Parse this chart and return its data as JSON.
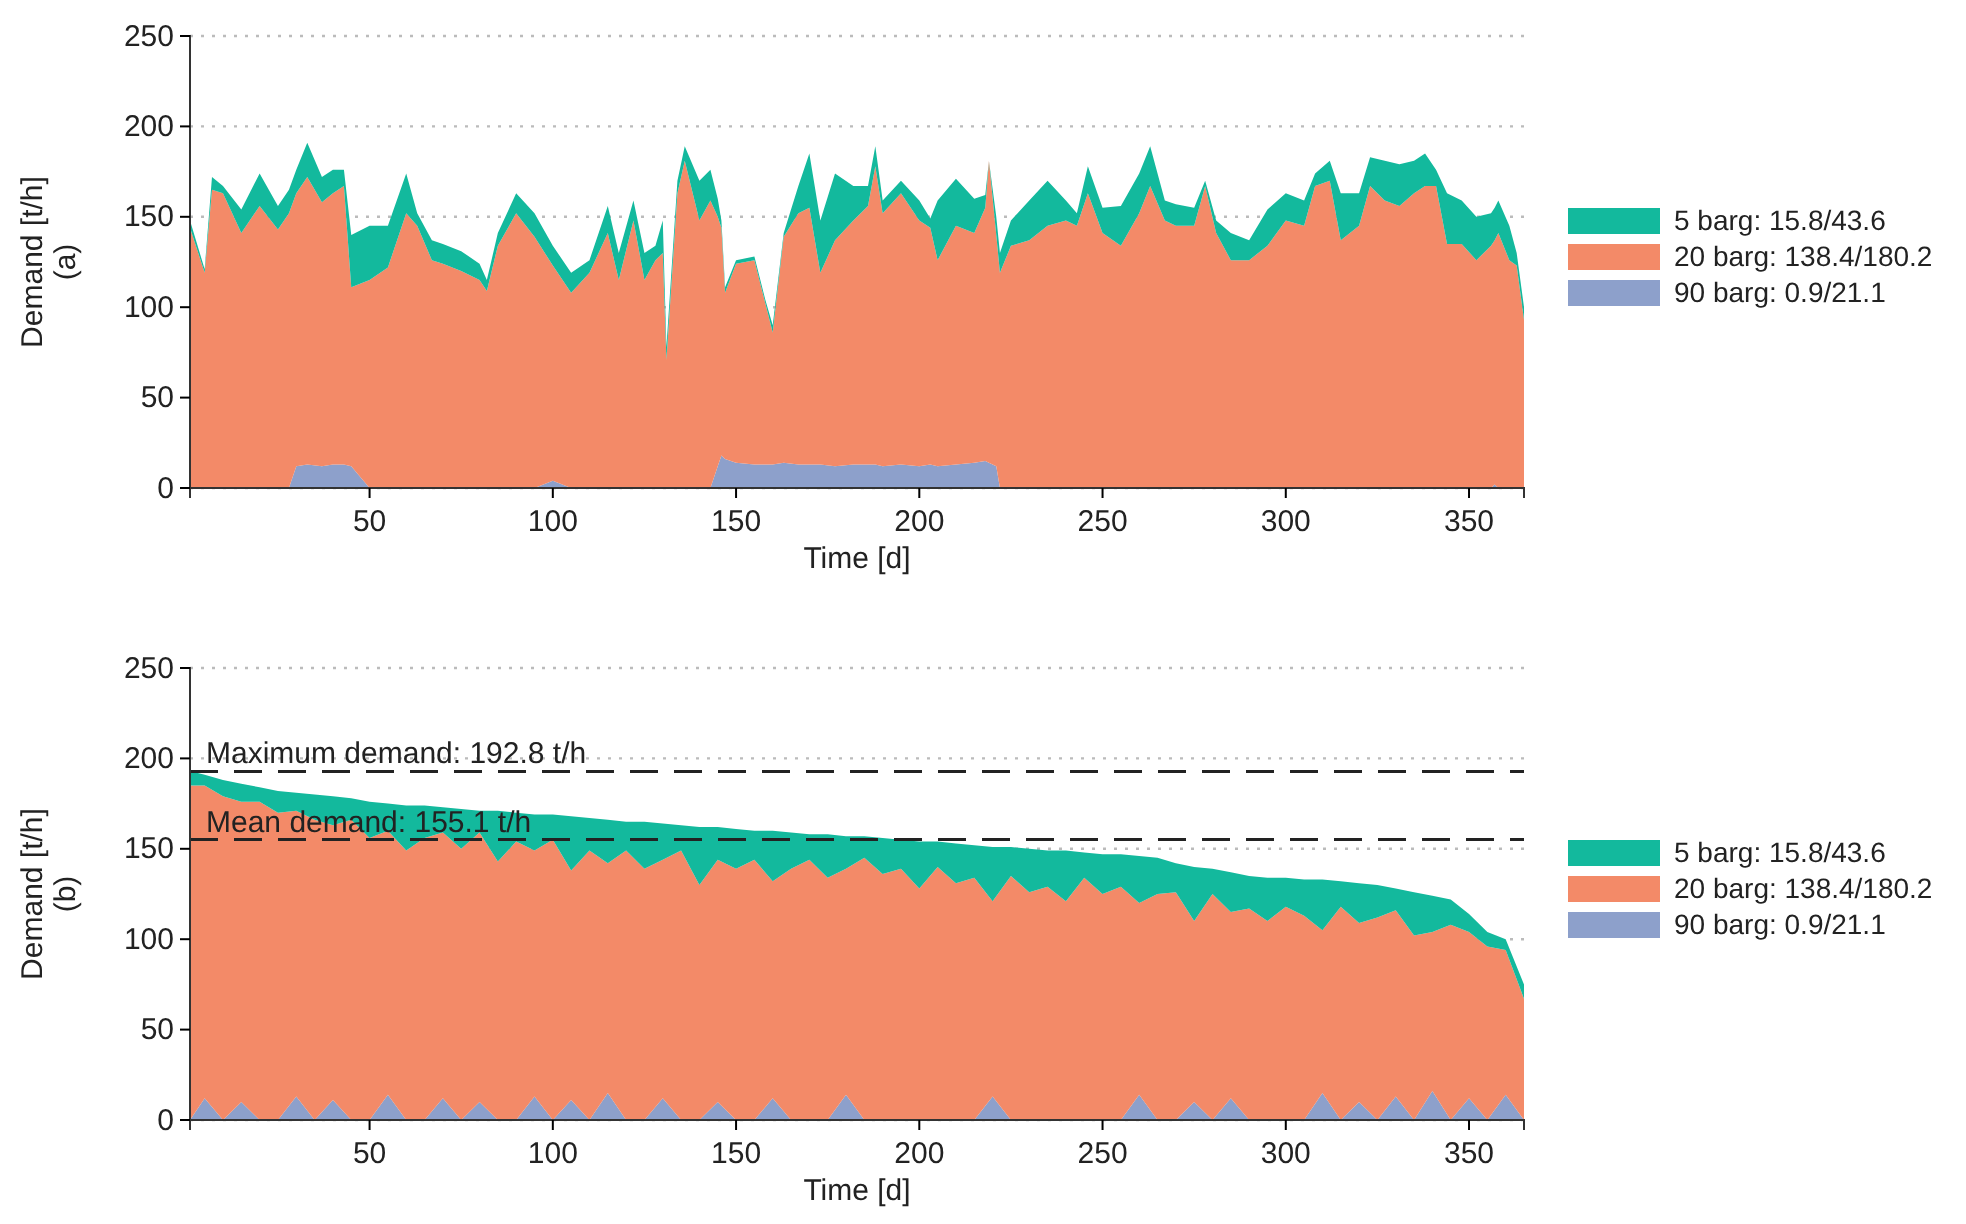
{
  "chart_data": [
    {
      "type": "area",
      "stacked": true,
      "xlabel": "Time [d]",
      "ylabel": "Demand [t/h]\n(a)",
      "xlim": [
        1,
        365
      ],
      "xticks": [
        50,
        100,
        150,
        200,
        250,
        300,
        350
      ],
      "ylim": [
        0,
        250
      ],
      "yticks": [
        0,
        50,
        100,
        150,
        200,
        250
      ],
      "grid": "y",
      "legend": "right",
      "x": [
        1,
        5,
        7,
        10,
        15,
        20,
        25,
        28,
        30,
        33,
        37,
        40,
        43,
        45,
        50,
        55,
        60,
        63,
        67,
        70,
        75,
        80,
        82,
        85,
        90,
        95,
        100,
        105,
        110,
        115,
        118,
        122,
        125,
        128,
        130,
        131,
        134,
        136,
        140,
        143,
        145,
        146,
        147,
        150,
        155,
        158,
        160,
        163,
        167,
        170,
        173,
        177,
        182,
        186,
        188,
        190,
        195,
        200,
        203,
        205,
        210,
        215,
        218,
        219,
        221,
        222,
        225,
        230,
        235,
        240,
        243,
        246,
        250,
        255,
        260,
        263,
        267,
        270,
        275,
        278,
        281,
        285,
        290,
        295,
        300,
        305,
        308,
        312,
        315,
        320,
        323,
        327,
        331,
        335,
        338,
        341,
        344,
        348,
        352,
        356,
        357,
        358,
        361,
        363,
        365
      ],
      "series": [
        {
          "name": "90 barg: 0.9/21.1",
          "color": "#8da0cb",
          "values": [
            0,
            0,
            0,
            0,
            0,
            0,
            0,
            0,
            12,
            13,
            12,
            13,
            13,
            12,
            0,
            0,
            0,
            0,
            0,
            0,
            0,
            0,
            0,
            0,
            0,
            0,
            4,
            0,
            0,
            0,
            0,
            0,
            0,
            0,
            0,
            0,
            0,
            0,
            0,
            0,
            12,
            18,
            16,
            14,
            13,
            13,
            13,
            14,
            13,
            13,
            13,
            12,
            13,
            13,
            13,
            12,
            13,
            12,
            13,
            12,
            13,
            14,
            15,
            14,
            12,
            0,
            0,
            0,
            0,
            0,
            0,
            0,
            0,
            0,
            0,
            0,
            0,
            0,
            0,
            0,
            0,
            0,
            0,
            0,
            0,
            0,
            0,
            0,
            0,
            0,
            0,
            0,
            0,
            0,
            0,
            0,
            0,
            0,
            0,
            0,
            2,
            0,
            0,
            0,
            0
          ]
        },
        {
          "name": "20 barg: 138.4/180.2",
          "color": "#f38a68",
          "values": [
            144,
            119,
            165,
            163,
            141,
            156,
            143,
            152,
            151,
            159,
            146,
            150,
            154,
            99,
            115,
            122,
            152,
            145,
            126,
            124,
            120,
            115,
            109,
            134,
            152,
            139,
            119,
            108,
            119,
            141,
            115,
            148,
            115,
            126,
            130,
            71,
            163,
            181,
            148,
            159,
            138,
            126,
            92,
            110,
            113,
            89,
            73,
            125,
            139,
            142,
            106,
            125,
            135,
            143,
            165,
            140,
            150,
            136,
            131,
            114,
            132,
            127,
            140,
            167,
            128,
            119,
            134,
            137,
            145,
            148,
            145,
            163,
            141,
            134,
            152,
            167,
            148,
            145,
            145,
            167,
            141,
            126,
            126,
            134,
            148,
            145,
            167,
            170,
            137,
            145,
            167,
            159,
            156,
            163,
            167,
            167,
            135,
            135,
            126,
            134,
            135,
            141,
            126,
            123,
            93
          ]
        },
        {
          "name": "5 barg: 15.8/43.6",
          "color": "#13b99d",
          "values": [
            4,
            2,
            7,
            4,
            13,
            18,
            13,
            13,
            13,
            19,
            14,
            13,
            9,
            29,
            30,
            23,
            22,
            7,
            11,
            11,
            11,
            9,
            6,
            7,
            11,
            13,
            11,
            11,
            7,
            15,
            15,
            11,
            15,
            8,
            18,
            7,
            7,
            8,
            22,
            17,
            10,
            4,
            3,
            2,
            2,
            2,
            4,
            2,
            15,
            30,
            29,
            37,
            19,
            11,
            11,
            7,
            7,
            11,
            5,
            33,
            26,
            19,
            7,
            0,
            10,
            11,
            14,
            22,
            25,
            11,
            7,
            15,
            14,
            22,
            22,
            22,
            11,
            12,
            10,
            3,
            7,
            15,
            11,
            20,
            15,
            14,
            7,
            11,
            26,
            18,
            16,
            22,
            23,
            18,
            18,
            9,
            28,
            24,
            24,
            18,
            18,
            18,
            19,
            7,
            7
          ]
        }
      ]
    },
    {
      "type": "area",
      "stacked": true,
      "xlabel": "Time [d]",
      "ylabel": "Demand [t/h]\n(b)",
      "xlim": [
        1,
        365
      ],
      "xticks": [
        50,
        100,
        150,
        200,
        250,
        300,
        350
      ],
      "ylim": [
        0,
        250
      ],
      "yticks": [
        0,
        50,
        100,
        150,
        200,
        250
      ],
      "grid": "y",
      "legend": "right",
      "x": [
        1,
        5,
        10,
        15,
        20,
        25,
        30,
        35,
        40,
        45,
        50,
        55,
        60,
        65,
        70,
        75,
        80,
        85,
        90,
        95,
        100,
        105,
        110,
        115,
        120,
        125,
        130,
        135,
        140,
        145,
        150,
        155,
        160,
        165,
        170,
        175,
        180,
        185,
        190,
        195,
        200,
        205,
        210,
        215,
        220,
        225,
        230,
        235,
        240,
        245,
        250,
        255,
        260,
        265,
        270,
        275,
        280,
        285,
        290,
        295,
        300,
        305,
        310,
        315,
        320,
        325,
        330,
        335,
        340,
        345,
        350,
        355,
        360,
        365
      ],
      "ref_lines": [
        {
          "axis": "y",
          "value": 192.8,
          "label": "Maximum demand: 192.8 t/h",
          "color": "#222222",
          "line_style": "dashed"
        },
        {
          "axis": "y",
          "value": 155.1,
          "label": "Mean demand: 155.1 t/h",
          "color": "#222222",
          "line_style": "dashed"
        }
      ],
      "series": [
        {
          "name": "90 barg: 0.9/21.1",
          "color": "#8da0cb",
          "values": [
            0,
            12,
            0,
            10,
            0,
            0,
            13,
            0,
            11,
            0,
            0,
            14,
            0,
            0,
            12,
            0,
            10,
            0,
            0,
            13,
            0,
            11,
            0,
            15,
            0,
            0,
            12,
            0,
            0,
            10,
            0,
            0,
            12,
            0,
            0,
            0,
            14,
            0,
            0,
            0,
            0,
            0,
            0,
            0,
            13,
            0,
            0,
            0,
            0,
            0,
            0,
            0,
            14,
            0,
            0,
            10,
            0,
            12,
            0,
            0,
            0,
            0,
            15,
            0,
            10,
            0,
            13,
            0,
            16,
            0,
            12,
            0,
            14,
            0
          ]
        },
        {
          "name": "20 barg: 138.4/180.2",
          "color": "#f38a68",
          "values": [
            185,
            173,
            179,
            166,
            176,
            170,
            158,
            166,
            152,
            166,
            156,
            146,
            149,
            156,
            147,
            150,
            149,
            143,
            154,
            136,
            155,
            127,
            149,
            127,
            149,
            139,
            132,
            149,
            130,
            134,
            139,
            144,
            120,
            139,
            144,
            134,
            125,
            145,
            136,
            139,
            128,
            140,
            131,
            134,
            108,
            135,
            126,
            129,
            121,
            134,
            125,
            129,
            106,
            125,
            126,
            100,
            125,
            103,
            117,
            110,
            118,
            113,
            90,
            118,
            99,
            112,
            103,
            102,
            88,
            108,
            92,
            96,
            80,
            67
          ]
        },
        {
          "name": "5 barg: 15.8/43.6",
          "color": "#13b99d",
          "values": [
            8,
            6,
            9,
            10,
            8,
            12,
            10,
            14,
            16,
            12,
            20,
            15,
            25,
            18,
            14,
            22,
            12,
            28,
            16,
            20,
            14,
            30,
            18,
            24,
            16,
            26,
            20,
            14,
            32,
            18,
            22,
            16,
            28,
            20,
            14,
            24,
            18,
            12,
            20,
            16,
            26,
            14,
            22,
            18,
            30,
            16,
            24,
            20,
            28,
            14,
            22,
            18,
            26,
            20,
            16,
            30,
            14,
            22,
            18,
            24,
            16,
            20,
            28,
            14,
            22,
            18,
            12,
            24,
            20,
            14,
            10,
            8,
            6,
            8
          ]
        }
      ]
    }
  ]
}
